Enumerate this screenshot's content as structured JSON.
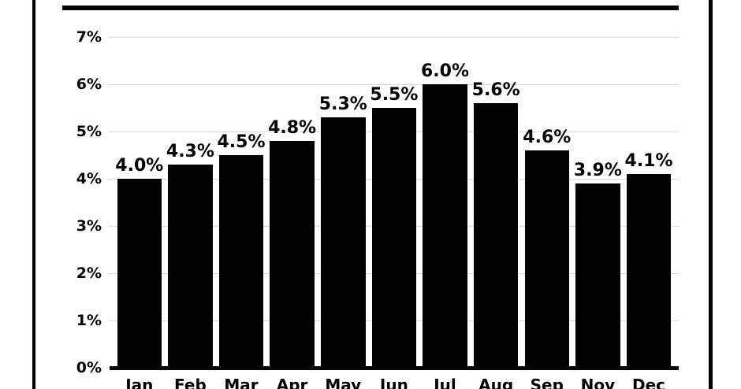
{
  "colors": {
    "background": "#ffffff",
    "bar": "#000000",
    "gridline": "#d9d9d9",
    "rule": "#000000",
    "text": "#000000"
  },
  "chart_data": {
    "type": "bar",
    "title": "",
    "xlabel": "",
    "ylabel": "",
    "categories": [
      "Jan",
      "Feb",
      "Mar",
      "Apr",
      "May",
      "Jun",
      "Jul",
      "Aug",
      "Sep",
      "Nov",
      "Dec"
    ],
    "values": [
      4.0,
      4.3,
      4.5,
      4.8,
      5.3,
      5.5,
      6.0,
      5.6,
      4.6,
      3.9,
      4.1
    ],
    "data_labels": [
      "4.0%",
      "4.3%",
      "4.5%",
      "4.8%",
      "5.3%",
      "5.5%",
      "6.0%",
      "5.6%",
      "4.6%",
      "3.9%",
      "4.1%"
    ],
    "ylim": [
      0,
      7
    ],
    "yticks": [
      {
        "value": 0,
        "label": "0%"
      },
      {
        "value": 1,
        "label": "1%"
      },
      {
        "value": 2,
        "label": "2%"
      },
      {
        "value": 3,
        "label": "3%"
      },
      {
        "value": 4,
        "label": "4%"
      },
      {
        "value": 5,
        "label": "5%"
      },
      {
        "value": 6,
        "label": "6%"
      },
      {
        "value": 7,
        "label": "7%"
      }
    ],
    "grid": "horizontal",
    "legend": "none",
    "bar_color": "#000000"
  }
}
